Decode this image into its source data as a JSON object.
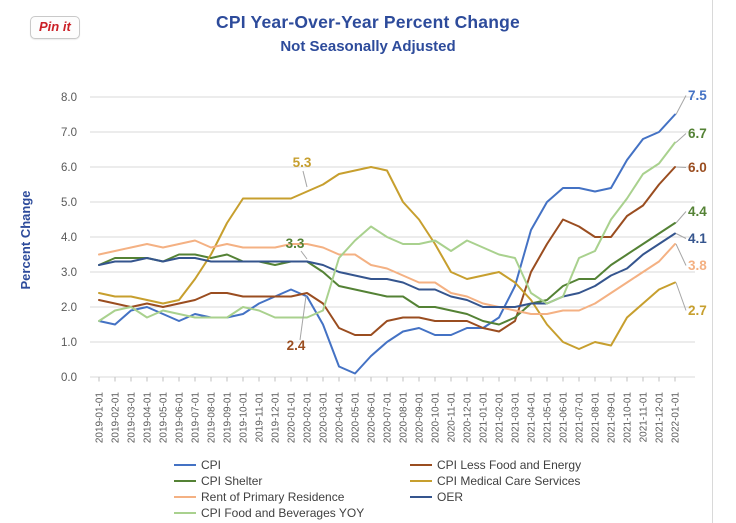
{
  "pinit": {
    "label": "Pin it"
  },
  "colors": {
    "title": "#2d4b9b",
    "axis_text": "#595959",
    "gridline": "#d9d9d9",
    "tick": "#bfbfbf",
    "legend_text": "#404040",
    "leader_line": "#a6a6a6",
    "pinit_red": "#cb2027",
    "chart_border": "#d9d9d9"
  },
  "chart_data": {
    "type": "line",
    "title": "CPI Year-Over-Year Percent Change",
    "subtitle": "Not Seasonally Adjusted",
    "xlabel": "",
    "ylabel": "Percent Change",
    "ylim": [
      0.0,
      8.0
    ],
    "ytick_step": 1.0,
    "ytick_labels": [
      "0.0",
      "1.0",
      "2.0",
      "3.0",
      "4.0",
      "5.0",
      "6.0",
      "7.0",
      "8.0"
    ],
    "grid": "horizontal",
    "legend_position": "bottom",
    "x": [
      "2019-01-01",
      "2019-02-01",
      "2019-03-01",
      "2019-04-01",
      "2019-05-01",
      "2019-06-01",
      "2019-07-01",
      "2019-08-01",
      "2019-09-01",
      "2019-10-01",
      "2019-11-01",
      "2019-12-01",
      "2020-01-01",
      "2020-02-01",
      "2020-03-01",
      "2020-04-01",
      "2020-05-01",
      "2020-06-01",
      "2020-07-01",
      "2020-08-01",
      "2020-09-01",
      "2020-10-01",
      "2020-11-01",
      "2020-12-01",
      "2021-01-01",
      "2021-02-01",
      "2021-03-01",
      "2021-04-01",
      "2021-05-01",
      "2021-06-01",
      "2021-07-01",
      "2021-08-01",
      "2021-09-01",
      "2021-10-01",
      "2021-11-01",
      "2021-12-01",
      "2022-01-01"
    ],
    "series": [
      {
        "name": "CPI",
        "color": "#4472c4",
        "end_label": "7.5",
        "values": [
          1.6,
          1.5,
          1.9,
          2.0,
          1.8,
          1.6,
          1.8,
          1.7,
          1.7,
          1.8,
          2.1,
          2.3,
          2.5,
          2.3,
          1.5,
          0.3,
          0.1,
          0.6,
          1.0,
          1.3,
          1.4,
          1.2,
          1.2,
          1.4,
          1.4,
          1.7,
          2.6,
          4.2,
          5.0,
          5.4,
          5.4,
          5.3,
          5.4,
          6.2,
          6.8,
          7.0,
          7.5
        ]
      },
      {
        "name": "CPI Less Food and Energy",
        "color": "#9a4d20",
        "end_label": "6.0",
        "values": [
          2.2,
          2.1,
          2.0,
          2.1,
          2.0,
          2.1,
          2.2,
          2.4,
          2.4,
          2.3,
          2.3,
          2.3,
          2.3,
          2.4,
          2.1,
          1.4,
          1.2,
          1.2,
          1.6,
          1.7,
          1.7,
          1.6,
          1.6,
          1.6,
          1.4,
          1.3,
          1.6,
          3.0,
          3.8,
          4.5,
          4.3,
          4.0,
          4.0,
          4.6,
          4.9,
          5.5,
          6.0
        ]
      },
      {
        "name": "CPI Shelter",
        "color": "#548235",
        "end_label": "4.4",
        "values": [
          3.2,
          3.4,
          3.4,
          3.4,
          3.3,
          3.5,
          3.5,
          3.4,
          3.5,
          3.3,
          3.3,
          3.2,
          3.3,
          3.3,
          3.0,
          2.6,
          2.5,
          2.4,
          2.3,
          2.3,
          2.0,
          2.0,
          1.9,
          1.8,
          1.6,
          1.5,
          1.7,
          2.1,
          2.2,
          2.6,
          2.8,
          2.8,
          3.2,
          3.5,
          3.8,
          4.1,
          4.4
        ]
      },
      {
        "name": "CPI Medical Care Services",
        "color": "#c79f2e",
        "end_label": "2.7",
        "values": [
          2.4,
          2.3,
          2.3,
          2.2,
          2.1,
          2.2,
          2.8,
          3.5,
          4.4,
          5.1,
          5.1,
          5.1,
          5.1,
          5.3,
          5.5,
          5.8,
          5.9,
          6.0,
          5.9,
          5.0,
          4.5,
          3.8,
          3.0,
          2.8,
          2.9,
          3.0,
          2.7,
          2.2,
          1.5,
          1.0,
          0.8,
          1.0,
          0.9,
          1.7,
          2.1,
          2.5,
          2.7
        ]
      },
      {
        "name": "Rent of Primary Residence",
        "color": "#f4b183",
        "end_label": "3.8",
        "values": [
          3.5,
          3.6,
          3.7,
          3.8,
          3.7,
          3.8,
          3.9,
          3.7,
          3.8,
          3.7,
          3.7,
          3.7,
          3.8,
          3.8,
          3.7,
          3.5,
          3.5,
          3.2,
          3.1,
          2.9,
          2.7,
          2.7,
          2.4,
          2.3,
          2.1,
          2.0,
          1.9,
          1.8,
          1.8,
          1.9,
          1.9,
          2.1,
          2.4,
          2.7,
          3.0,
          3.3,
          3.8
        ]
      },
      {
        "name": "OER",
        "color": "#35558e",
        "end_label": "4.1",
        "values": [
          3.2,
          3.3,
          3.3,
          3.4,
          3.3,
          3.4,
          3.4,
          3.3,
          3.3,
          3.3,
          3.3,
          3.3,
          3.3,
          3.3,
          3.2,
          3.0,
          2.9,
          2.8,
          2.8,
          2.7,
          2.5,
          2.5,
          2.3,
          2.2,
          2.0,
          2.0,
          2.0,
          2.1,
          2.1,
          2.3,
          2.4,
          2.6,
          2.9,
          3.1,
          3.5,
          3.8,
          4.1
        ]
      },
      {
        "name": "CPI Food and Beverages YOY",
        "color": "#a9d18e",
        "end_label": "6.7",
        "end_label_color": "#548235",
        "values": [
          1.6,
          1.9,
          2.0,
          1.7,
          1.9,
          1.8,
          1.7,
          1.7,
          1.7,
          2.0,
          1.9,
          1.7,
          1.7,
          1.7,
          1.9,
          3.4,
          3.9,
          4.3,
          4.0,
          3.8,
          3.8,
          3.9,
          3.6,
          3.9,
          3.7,
          3.5,
          3.4,
          2.4,
          2.1,
          2.3,
          3.4,
          3.6,
          4.5,
          5.1,
          5.8,
          6.1,
          6.7
        ]
      }
    ],
    "annotations": [
      {
        "text": "5.3",
        "series": "CPI Medical Care Services",
        "date": "2020-02-01"
      },
      {
        "text": "3.3",
        "series": "CPI Shelter",
        "date": "2020-02-01"
      },
      {
        "text": "2.4",
        "series": "CPI Less Food and Energy",
        "date": "2020-02-01"
      }
    ],
    "legend": {
      "columns": [
        [
          "CPI",
          "CPI Shelter",
          "Rent of Primary Residence",
          "CPI Food and Beverages YOY"
        ],
        [
          "CPI Less Food and Energy",
          "CPI Medical Care Services",
          "OER"
        ]
      ]
    }
  }
}
